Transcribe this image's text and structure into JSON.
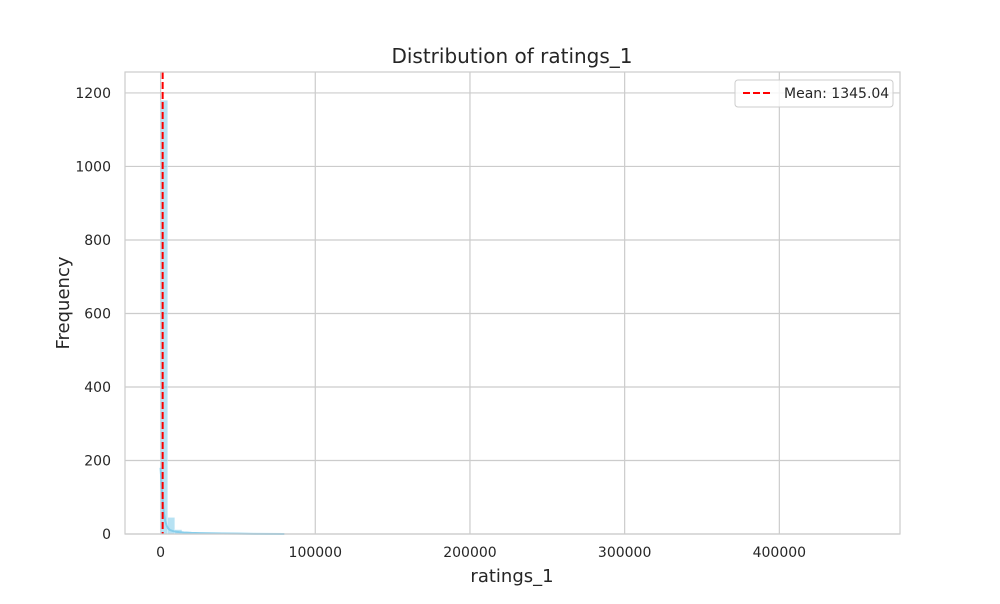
{
  "chart_data": {
    "type": "histogram",
    "title": "Distribution of ratings_1",
    "xlabel": "ratings_1",
    "ylabel": "Frequency",
    "xlim": [
      -23000,
      478000
    ],
    "ylim": [
      0,
      1257
    ],
    "xticks": [
      0,
      100000,
      200000,
      300000,
      400000
    ],
    "xtick_labels": [
      "0",
      "100000",
      "200000",
      "300000",
      "400000"
    ],
    "yticks": [
      0,
      200,
      400,
      600,
      800,
      1000,
      1200
    ],
    "ytick_labels": [
      "0",
      "200",
      "400",
      "600",
      "800",
      "1000",
      "1200"
    ],
    "grid": true,
    "bins": [
      {
        "x0": 0,
        "x1": 4600,
        "count": 1180
      },
      {
        "x0": 4600,
        "x1": 9200,
        "count": 45
      },
      {
        "x0": 9200,
        "x1": 13800,
        "count": 12
      },
      {
        "x0": 13800,
        "x1": 18400,
        "count": 6
      },
      {
        "x0": 18400,
        "x1": 23000,
        "count": 4
      },
      {
        "x0": 23000,
        "x1": 27600,
        "count": 3
      },
      {
        "x0": 27600,
        "x1": 32200,
        "count": 2
      },
      {
        "x0": 32200,
        "x1": 36800,
        "count": 2
      },
      {
        "x0": 36800,
        "x1": 41400,
        "count": 1
      },
      {
        "x0": 41400,
        "x1": 46000,
        "count": 1
      },
      {
        "x0": 50600,
        "x1": 55200,
        "count": 1
      }
    ],
    "kde": {
      "x": [
        0,
        1000,
        2000,
        3000,
        4000,
        5000,
        6000,
        8000,
        10000,
        12000,
        15000,
        20000,
        25000,
        30000,
        40000,
        50000,
        60000,
        80000
      ],
      "y": [
        180,
        110,
        60,
        35,
        22,
        15,
        11,
        8,
        6,
        5,
        4,
        3,
        2.5,
        2,
        1.5,
        1,
        0.5,
        0
      ]
    },
    "mean_line": {
      "value": 1345.04,
      "label": "Mean: 1345.04",
      "color": "#ff0000",
      "style": "dashed"
    },
    "hist_color": "#87ceeb",
    "legend_position": "top-right"
  }
}
